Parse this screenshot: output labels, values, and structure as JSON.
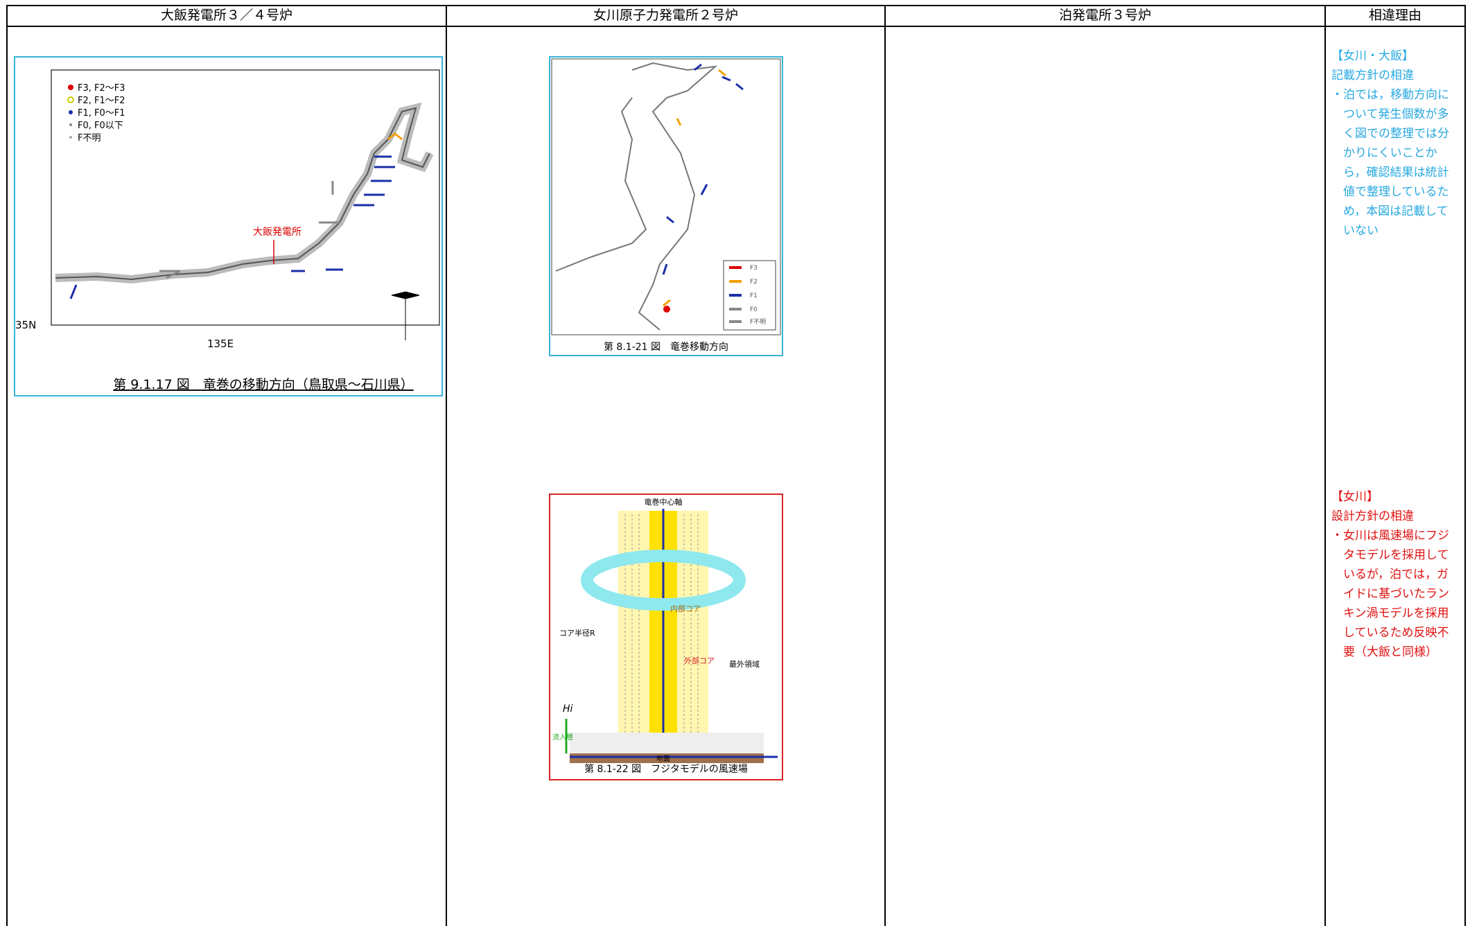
{
  "header": {
    "columns": [
      "大飯発電所３／４号炉",
      "女川原子力発電所２号炉",
      "泊発電所３号炉",
      "相違理由"
    ]
  },
  "col1": {
    "figure": {
      "legend": [
        "F3, F2～F3",
        "F2, F1～F2",
        "F1, F0～F1",
        "F0, F0以下",
        "F不明"
      ],
      "site_label": "大飯発電所",
      "lat_label": "35N",
      "lon_label": "135E",
      "caption": "第 9.1.17 図　竜巻の移動方向（鳥取県～石川県）"
    }
  },
  "col2": {
    "figure1": {
      "legend": [
        "F3",
        "F2",
        "F1",
        "F0",
        "F不明"
      ],
      "caption": "第 8.1-21 図　竜巻移動方向"
    },
    "figure2": {
      "labels": {
        "axis": "竜巻中心軸",
        "inner": "内部コア",
        "radius": "コア半径R",
        "outer": "外部コア",
        "outermost": "最外領域",
        "height": "Hi",
        "inflow": "流入層",
        "ground": "地面"
      },
      "caption": "第 8.1-22 図　フジタモデルの風速場"
    }
  },
  "col4": {
    "notes": [
      {
        "tag": "【女川・大飯】",
        "heading": "記載方針の相違",
        "body": "・泊では，移動方向について発生個数が多く図での整理では分かりにくいことから，確認結果は統計値で整理しているため，本図は記載していない"
      },
      {
        "tag": "【女川】",
        "heading": "設計方針の相違",
        "body": "・女川は風速場にフジタモデルを採用しているが，泊では，ガイドに基づいたランキン渦モデルを採用しているため反映不要（大飯と同様）"
      }
    ]
  }
}
